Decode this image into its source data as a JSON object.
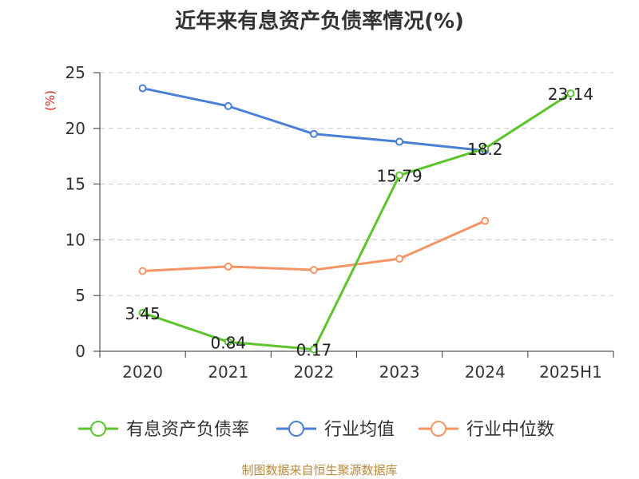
{
  "title": "近年来有息资产负债率情况(%)",
  "source": "制图数据来自恒生聚源数据库",
  "colors": {
    "primary": "#5cc42c",
    "industry_avg": "#4a7fd6",
    "industry_median": "#f79465",
    "ylabel": "#e02020",
    "source": "#b88a3c"
  },
  "chart_data": {
    "type": "line",
    "title": "近年来有息资产负债率情况(%)",
    "xlabel": "",
    "ylabel": "(%)",
    "categories": [
      "2020",
      "2021",
      "2022",
      "2023",
      "2024",
      "2025H1"
    ],
    "ylim": [
      0,
      25
    ],
    "yticks": [
      0,
      5,
      10,
      15,
      20,
      25
    ],
    "grid": true,
    "legend_position": "bottom",
    "series": [
      {
        "name": "有息资产负债率",
        "color": "#5cc42c",
        "values": [
          3.45,
          0.84,
          0.17,
          15.79,
          18.2,
          23.14
        ],
        "data_labels": [
          "3.45",
          "0.84",
          "0.17",
          "15.79",
          "18.2",
          "23.14"
        ]
      },
      {
        "name": "行业均值",
        "color": "#4a7fd6",
        "values": [
          23.6,
          22.0,
          19.5,
          18.8,
          18.0,
          null
        ]
      },
      {
        "name": "行业中位数",
        "color": "#f79465",
        "values": [
          7.2,
          7.6,
          7.3,
          8.3,
          11.7,
          null
        ]
      }
    ]
  }
}
